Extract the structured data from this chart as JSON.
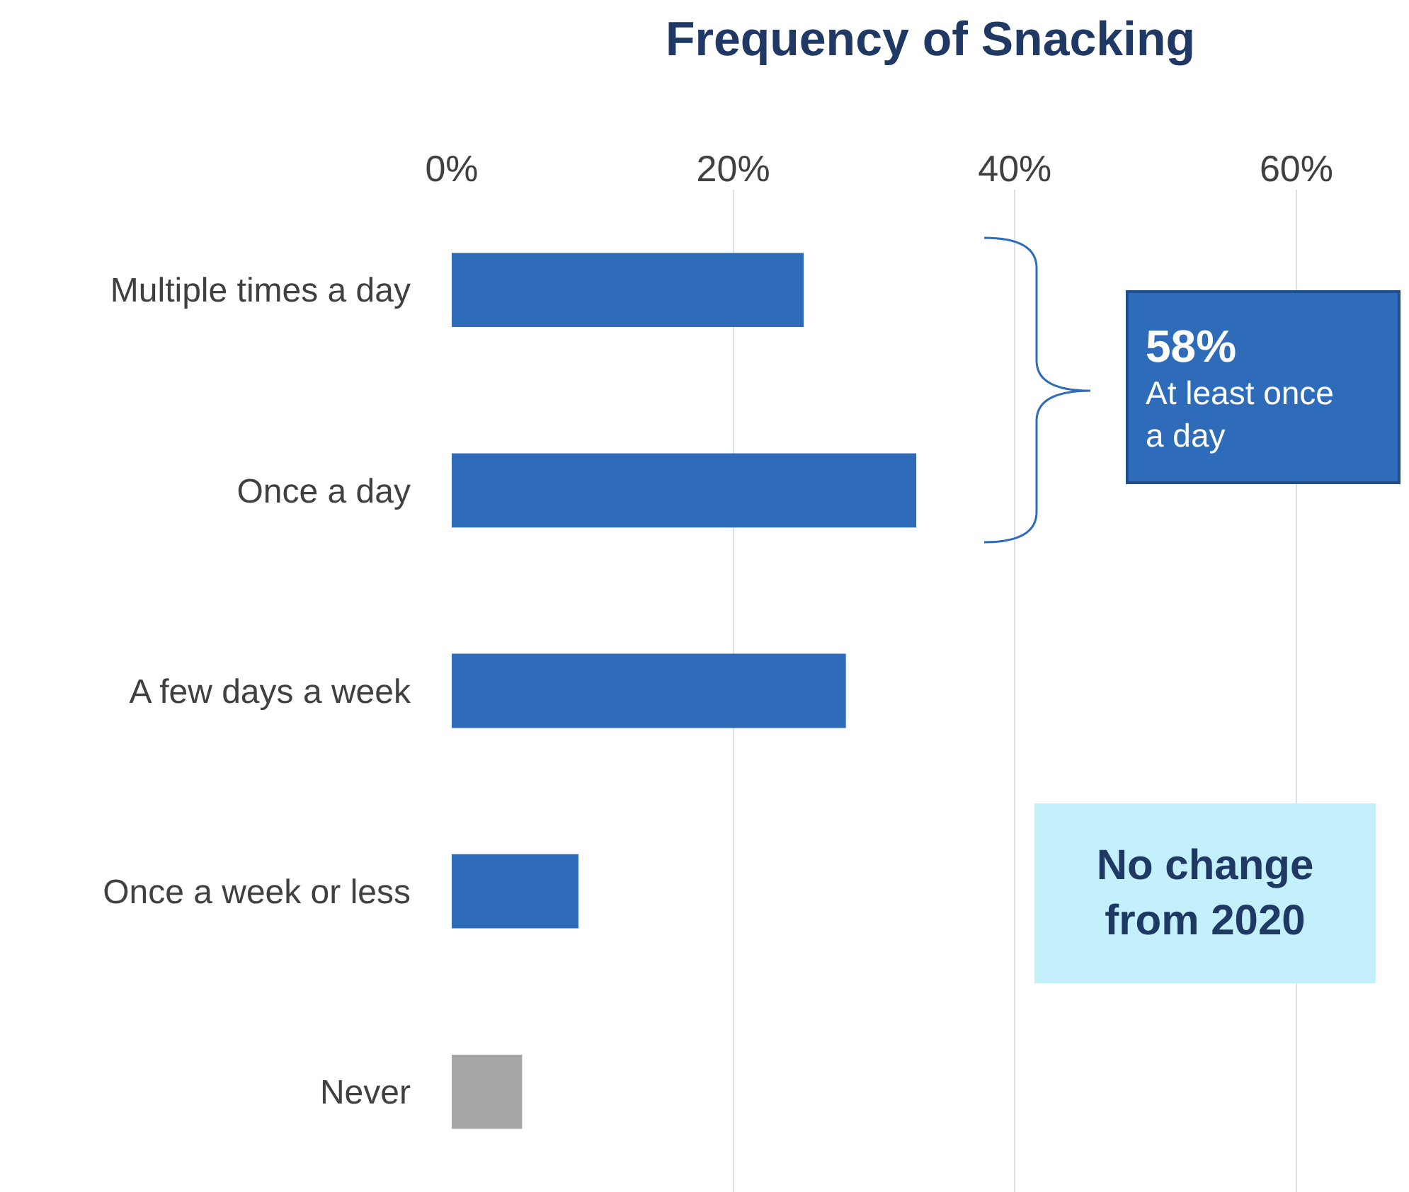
{
  "chart_data": {
    "type": "bar",
    "orientation": "horizontal",
    "title": "Frequency of Snacking",
    "categories": [
      "Multiple times a day",
      "Once a day",
      "A few days a week",
      "Once a week or less",
      "Never"
    ],
    "values": [
      25,
      33,
      28,
      9,
      5
    ],
    "colors": [
      "#2e6bb8",
      "#2e6bb8",
      "#2e6bb8",
      "#2e6bb8",
      "#a6a6a6"
    ],
    "xlim": [
      0,
      68
    ],
    "xticks": [
      {
        "value": 0,
        "label": "0%"
      },
      {
        "value": 20,
        "label": "20%"
      },
      {
        "value": 40,
        "label": "40%"
      },
      {
        "value": 60,
        "label": "60%"
      }
    ],
    "grid": "x",
    "legend": false,
    "annotations": [
      "58%",
      "At least once a day",
      "No change from 2020"
    ]
  }
}
